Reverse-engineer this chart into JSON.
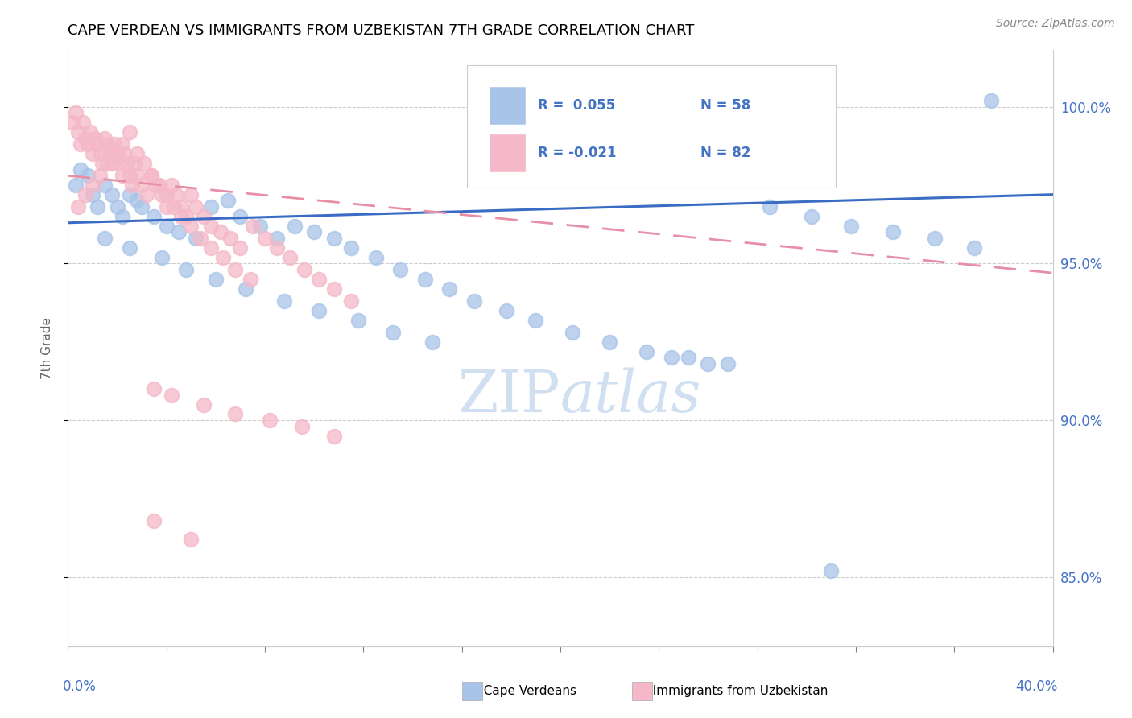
{
  "title": "CAPE VERDEAN VS IMMIGRANTS FROM UZBEKISTAN 7TH GRADE CORRELATION CHART",
  "source": "Source: ZipAtlas.com",
  "ylabel": "7th Grade",
  "xmin": 0.0,
  "xmax": 0.4,
  "ymin": 0.828,
  "ymax": 1.018,
  "blue_color": "#a8c4e8",
  "pink_color": "#f4b8c8",
  "blue_line_color": "#3a6cc4",
  "pink_line_color": "#e88fa8",
  "watermark_color": "#ccddf0",
  "right_yticks": [
    0.85,
    0.9,
    0.95,
    1.0
  ],
  "right_yticklabels": [
    "85.0%",
    "90.0%",
    "95.0%",
    "100.0%"
  ],
  "legend_r_blue": "R =  0.055",
  "legend_n_blue": "N = 58",
  "legend_r_pink": "R = -0.021",
  "legend_n_pink": "N = 82",
  "blue_x": [
    0.003,
    0.005,
    0.008,
    0.01,
    0.012,
    0.015,
    0.018,
    0.02,
    0.022,
    0.025,
    0.028,
    0.03,
    0.035,
    0.04,
    0.045,
    0.052,
    0.058,
    0.065,
    0.07,
    0.078,
    0.085,
    0.092,
    0.1,
    0.108,
    0.115,
    0.125,
    0.135,
    0.145,
    0.155,
    0.165,
    0.178,
    0.19,
    0.205,
    0.22,
    0.235,
    0.252,
    0.268,
    0.285,
    0.302,
    0.318,
    0.335,
    0.352,
    0.368,
    0.015,
    0.025,
    0.038,
    0.048,
    0.06,
    0.072,
    0.088,
    0.102,
    0.118,
    0.132,
    0.148,
    0.245,
    0.26,
    0.31,
    0.375
  ],
  "blue_y": [
    0.975,
    0.98,
    0.978,
    0.972,
    0.968,
    0.975,
    0.972,
    0.968,
    0.965,
    0.972,
    0.97,
    0.968,
    0.965,
    0.962,
    0.96,
    0.958,
    0.968,
    0.97,
    0.965,
    0.962,
    0.958,
    0.962,
    0.96,
    0.958,
    0.955,
    0.952,
    0.948,
    0.945,
    0.942,
    0.938,
    0.935,
    0.932,
    0.928,
    0.925,
    0.922,
    0.92,
    0.918,
    0.968,
    0.965,
    0.962,
    0.96,
    0.958,
    0.955,
    0.958,
    0.955,
    0.952,
    0.948,
    0.945,
    0.942,
    0.938,
    0.935,
    0.932,
    0.928,
    0.925,
    0.92,
    0.918,
    0.852,
    1.002
  ],
  "pink_x": [
    0.002,
    0.003,
    0.004,
    0.005,
    0.006,
    0.007,
    0.008,
    0.009,
    0.01,
    0.011,
    0.012,
    0.013,
    0.014,
    0.015,
    0.016,
    0.017,
    0.018,
    0.019,
    0.02,
    0.021,
    0.022,
    0.023,
    0.024,
    0.025,
    0.026,
    0.027,
    0.028,
    0.03,
    0.032,
    0.034,
    0.036,
    0.038,
    0.04,
    0.042,
    0.044,
    0.046,
    0.048,
    0.05,
    0.052,
    0.055,
    0.058,
    0.062,
    0.066,
    0.07,
    0.075,
    0.08,
    0.085,
    0.09,
    0.096,
    0.102,
    0.108,
    0.115,
    0.004,
    0.007,
    0.01,
    0.013,
    0.016,
    0.019,
    0.022,
    0.025,
    0.028,
    0.031,
    0.034,
    0.037,
    0.04,
    0.043,
    0.046,
    0.05,
    0.054,
    0.058,
    0.063,
    0.068,
    0.074,
    0.035,
    0.042,
    0.055,
    0.068,
    0.082,
    0.095,
    0.108,
    0.035,
    0.05
  ],
  "pink_y": [
    0.995,
    0.998,
    0.992,
    0.988,
    0.995,
    0.99,
    0.988,
    0.992,
    0.985,
    0.99,
    0.988,
    0.985,
    0.982,
    0.99,
    0.988,
    0.985,
    0.982,
    0.988,
    0.985,
    0.982,
    0.978,
    0.985,
    0.982,
    0.978,
    0.975,
    0.982,
    0.978,
    0.975,
    0.972,
    0.978,
    0.975,
    0.972,
    0.968,
    0.975,
    0.972,
    0.968,
    0.965,
    0.972,
    0.968,
    0.965,
    0.962,
    0.96,
    0.958,
    0.955,
    0.962,
    0.958,
    0.955,
    0.952,
    0.948,
    0.945,
    0.942,
    0.938,
    0.968,
    0.972,
    0.975,
    0.978,
    0.982,
    0.985,
    0.988,
    0.992,
    0.985,
    0.982,
    0.978,
    0.975,
    0.972,
    0.968,
    0.965,
    0.962,
    0.958,
    0.955,
    0.952,
    0.948,
    0.945,
    0.91,
    0.908,
    0.905,
    0.902,
    0.9,
    0.898,
    0.895,
    0.868,
    0.862
  ]
}
